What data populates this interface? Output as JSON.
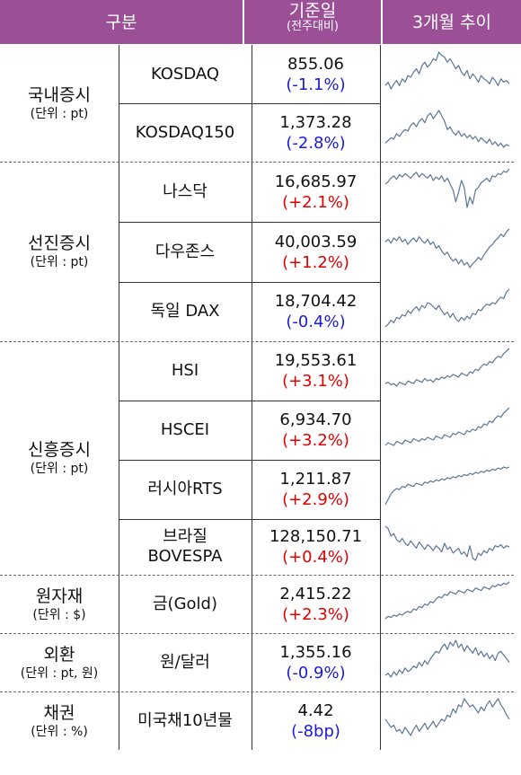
{
  "header": {
    "col1": "구분",
    "col2_line1": "기준일",
    "col2_line2": "(전주대비)",
    "col3": "3개월 추이"
  },
  "groups": [
    {
      "title": "국내증시",
      "unit": "(단위 : pt)"
    },
    {
      "title": "선진증시",
      "unit": "(단위 : pt)"
    },
    {
      "title": "신흥증시",
      "unit": "(단위 : pt)"
    },
    {
      "title": "원자재",
      "unit": "(단위 : $)"
    },
    {
      "title": "외환",
      "unit": "(단위 : pt, 원)"
    },
    {
      "title": "채권",
      "unit": "(단위 : %)"
    }
  ],
  "rows": [
    {
      "name": "KOSDAQ",
      "value": "855.06",
      "change": "(-1.1%)",
      "direction": "down",
      "trend": [
        60,
        62,
        58,
        61,
        63,
        60,
        64,
        62,
        66,
        65,
        68,
        70,
        67,
        72,
        74,
        71,
        73,
        76,
        75,
        80,
        78,
        77,
        74,
        76,
        73,
        70,
        72,
        68,
        66,
        69,
        64,
        67,
        65,
        62,
        66,
        64,
        63,
        61,
        65,
        63,
        60,
        64,
        62,
        63,
        61
      ]
    },
    {
      "name": "KOSDAQ150",
      "value": "1,373.28",
      "change": "(-2.8%)",
      "direction": "down",
      "trend": [
        40,
        42,
        44,
        43,
        47,
        45,
        48,
        50,
        49,
        53,
        55,
        52,
        56,
        58,
        55,
        60,
        62,
        58,
        61,
        64,
        60,
        56,
        50,
        52,
        48,
        46,
        49,
        45,
        47,
        44,
        46,
        43,
        45,
        41,
        44,
        42,
        40,
        43,
        39,
        41,
        38,
        40,
        37,
        39,
        38
      ]
    },
    {
      "name": "나스닥",
      "value": "16,685.97",
      "change": "(+2.1%)",
      "direction": "up",
      "trend": [
        55,
        57,
        60,
        62,
        59,
        63,
        61,
        64,
        62,
        60,
        63,
        65,
        61,
        64,
        62,
        60,
        63,
        58,
        61,
        59,
        62,
        57,
        60,
        55,
        50,
        40,
        48,
        58,
        52,
        35,
        44,
        38,
        50,
        52,
        56,
        58,
        60,
        57,
        62,
        61,
        64,
        63,
        66,
        65,
        68
      ]
    },
    {
      "name": "다우존스",
      "value": "40,003.59",
      "change": "(+1.2%)",
      "direction": "up",
      "trend": [
        60,
        62,
        59,
        63,
        61,
        64,
        60,
        62,
        58,
        61,
        63,
        60,
        64,
        61,
        59,
        62,
        58,
        60,
        55,
        57,
        53,
        50,
        52,
        48,
        45,
        47,
        43,
        46,
        42,
        44,
        40,
        43,
        45,
        48,
        46,
        50,
        53,
        56,
        58,
        61,
        63,
        66,
        64,
        68,
        70
      ]
    },
    {
      "name": "독일 DAX",
      "value": "18,704.42",
      "change": "(-0.4%)",
      "direction": "down",
      "trend": [
        40,
        42,
        45,
        43,
        47,
        46,
        49,
        48,
        52,
        50,
        53,
        55,
        52,
        56,
        54,
        58,
        57,
        55,
        53,
        56,
        52,
        49,
        51,
        47,
        50,
        46,
        44,
        47,
        45,
        48,
        46,
        50,
        49,
        53,
        52,
        55,
        57,
        56,
        58,
        57,
        60,
        62,
        61,
        66,
        68
      ]
    },
    {
      "name": "HSI",
      "value": "19,553.61",
      "change": "(+3.1%)",
      "direction": "up",
      "trend": [
        40,
        41,
        39,
        40,
        38,
        41,
        40,
        39,
        42,
        41,
        40,
        43,
        42,
        41,
        44,
        42,
        43,
        41,
        44,
        43,
        45,
        44,
        46,
        45,
        47,
        46,
        45,
        48,
        47,
        46,
        49,
        48,
        51,
        50,
        53,
        55,
        54,
        57,
        56,
        59,
        61,
        60,
        63,
        65,
        67
      ]
    },
    {
      "name": "HSCEI",
      "value": "6,934.70",
      "change": "(+3.2%)",
      "direction": "up",
      "trend": [
        38,
        40,
        39,
        38,
        41,
        40,
        39,
        42,
        41,
        40,
        43,
        42,
        41,
        43,
        42,
        44,
        43,
        42,
        45,
        44,
        43,
        46,
        45,
        44,
        47,
        46,
        48,
        47,
        46,
        49,
        48,
        50,
        49,
        52,
        51,
        54,
        53,
        56,
        55,
        58,
        60,
        59,
        62,
        64,
        66
      ]
    },
    {
      "name": "러시아RTS",
      "value": "1,211.87",
      "change": "(+2.9%)",
      "direction": "up",
      "trend": [
        25,
        30,
        35,
        38,
        40,
        39,
        42,
        41,
        44,
        43,
        42,
        45,
        44,
        43,
        46,
        45,
        47,
        46,
        48,
        47,
        49,
        48,
        50,
        49,
        51,
        50,
        52,
        51,
        53,
        52,
        54,
        53,
        55,
        54,
        56,
        55,
        57,
        56,
        58,
        57,
        59,
        58,
        60,
        59,
        60
      ]
    },
    {
      "name": "브라질\nBOVESPA",
      "value": "128,150.71",
      "change": "(+0.4%)",
      "direction": "up",
      "trend": [
        68,
        66,
        60,
        62,
        57,
        55,
        58,
        54,
        52,
        56,
        53,
        50,
        55,
        52,
        49,
        53,
        51,
        48,
        52,
        50,
        47,
        54,
        49,
        51,
        46,
        48,
        50,
        45,
        47,
        43,
        52,
        42,
        40,
        46,
        44,
        48,
        46,
        50,
        48,
        52,
        51,
        53,
        50,
        52,
        51
      ]
    },
    {
      "name": "금(Gold)",
      "value": "2,415.22",
      "change": "(+2.3%)",
      "direction": "up",
      "trend": [
        40,
        42,
        41,
        43,
        42,
        44,
        43,
        45,
        46,
        45,
        48,
        47,
        50,
        49,
        52,
        51,
        54,
        53,
        56,
        58,
        57,
        60,
        59,
        62,
        61,
        60,
        63,
        62,
        61,
        64,
        63,
        62,
        65,
        64,
        63,
        66,
        65,
        64,
        67,
        66,
        68,
        67,
        69,
        68,
        70
      ]
    },
    {
      "name": "원/달러",
      "value": "1,355.16",
      "change": "(-0.9%)",
      "direction": "down",
      "trend": [
        45,
        46,
        44,
        47,
        45,
        48,
        46,
        49,
        47,
        48,
        50,
        49,
        52,
        50,
        53,
        51,
        54,
        56,
        58,
        57,
        60,
        62,
        59,
        63,
        61,
        64,
        60,
        62,
        58,
        61,
        59,
        57,
        60,
        56,
        58,
        55,
        57,
        54,
        56,
        53,
        57,
        58,
        56,
        54,
        52
      ]
    },
    {
      "name": "미국채10년물",
      "value": "4.42",
      "change": "(-8bp)",
      "direction": "down",
      "trend": [
        50,
        48,
        46,
        47,
        44,
        45,
        43,
        46,
        44,
        42,
        45,
        47,
        44,
        46,
        48,
        45,
        47,
        49,
        46,
        48,
        50,
        49,
        52,
        51,
        55,
        53,
        57,
        56,
        60,
        58,
        56,
        57,
        55,
        53,
        56,
        54,
        57,
        59,
        56,
        58,
        60,
        57,
        55,
        52,
        50
      ]
    }
  ]
}
